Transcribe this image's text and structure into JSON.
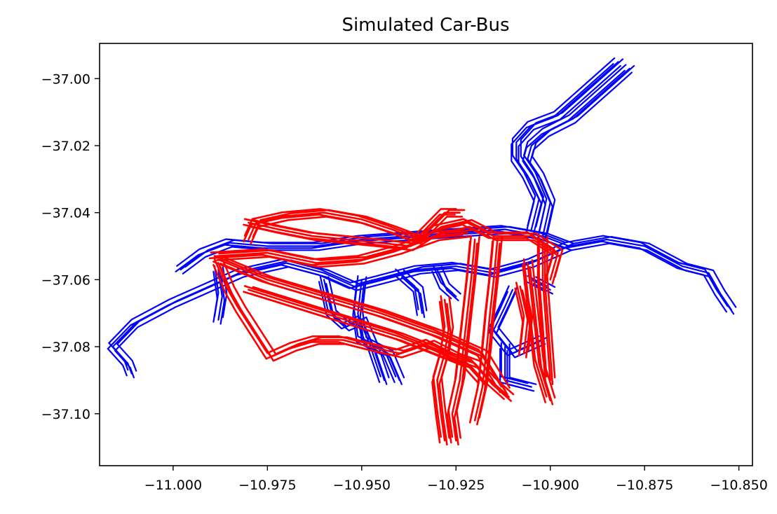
{
  "chart_data": {
    "type": "line",
    "title": "Simulated Car-Bus",
    "xlabel": "",
    "ylabel": "",
    "xlim": [
      -11.0195,
      -10.8464
    ],
    "ylim": [
      -37.1155,
      -36.9895
    ],
    "x_ticks": [
      {
        "value": -11.0,
        "label": "−11.000"
      },
      {
        "value": -10.975,
        "label": "−10.975"
      },
      {
        "value": -10.95,
        "label": "−10.950"
      },
      {
        "value": -10.925,
        "label": "−10.925"
      },
      {
        "value": -10.9,
        "label": "−10.900"
      },
      {
        "value": -10.875,
        "label": "−10.875"
      },
      {
        "value": -10.85,
        "label": "−10.850"
      }
    ],
    "y_ticks": [
      {
        "value": -37.0,
        "label": "−37.00"
      },
      {
        "value": -37.02,
        "label": "−37.02"
      },
      {
        "value": -37.04,
        "label": "−37.04"
      },
      {
        "value": -37.06,
        "label": "−37.06"
      },
      {
        "value": -37.08,
        "label": "−37.08"
      },
      {
        "value": -37.1,
        "label": "−37.10"
      }
    ],
    "grid": false,
    "legend": "none",
    "series": [
      {
        "color": "#0000ff",
        "paths": [
          [
            [
              -11.016,
              -37.08
            ],
            [
              -11.01,
              -37.073
            ],
            [
              -11.0,
              -37.067
            ],
            [
              -10.99,
              -37.062
            ],
            [
              -10.982,
              -37.058
            ],
            [
              -10.97,
              -37.055
            ],
            [
              -10.96,
              -37.058
            ],
            [
              -10.952,
              -37.062
            ],
            [
              -10.945,
              -37.06
            ],
            [
              -10.935,
              -37.057
            ],
            [
              -10.925,
              -37.056
            ],
            [
              -10.915,
              -37.058
            ],
            [
              -10.905,
              -37.055
            ],
            [
              -10.895,
              -37.05
            ],
            [
              -10.885,
              -37.048
            ],
            [
              -10.875,
              -37.05
            ],
            [
              -10.865,
              -37.056
            ],
            [
              -10.858,
              -37.058
            ],
            [
              -10.855,
              -37.064
            ],
            [
              -10.852,
              -37.069
            ]
          ],
          [
            [
              -11.016,
              -37.08
            ],
            [
              -11.012,
              -37.085
            ],
            [
              -11.011,
              -37.088
            ]
          ],
          [
            [
              -10.998,
              -37.057
            ],
            [
              -10.992,
              -37.052
            ],
            [
              -10.985,
              -37.049
            ],
            [
              -10.975,
              -37.05
            ],
            [
              -10.962,
              -37.05
            ],
            [
              -10.95,
              -37.048
            ],
            [
              -10.938,
              -37.047
            ],
            [
              -10.925,
              -37.046
            ],
            [
              -10.912,
              -37.045
            ],
            [
              -10.902,
              -37.047
            ],
            [
              -10.895,
              -37.05
            ]
          ],
          [
            [
              -10.905,
              -37.045
            ],
            [
              -10.903,
              -37.036
            ],
            [
              -10.906,
              -37.029
            ],
            [
              -10.909,
              -37.024
            ],
            [
              -10.909,
              -37.019
            ],
            [
              -10.905,
              -37.014
            ],
            [
              -10.898,
              -37.011
            ],
            [
              -10.892,
              -37.005
            ],
            [
              -10.887,
              -37.0
            ],
            [
              -10.882,
              -36.995
            ]
          ],
          [
            [
              -10.902,
              -37.047
            ],
            [
              -10.9,
              -37.037
            ],
            [
              -10.903,
              -37.029
            ],
            [
              -10.906,
              -37.024
            ],
            [
              -10.905,
              -37.02
            ],
            [
              -10.901,
              -37.016
            ],
            [
              -10.894,
              -37.012
            ],
            [
              -10.888,
              -37.006
            ],
            [
              -10.883,
              -37.001
            ],
            [
              -10.879,
              -36.997
            ]
          ],
          [
            [
              -10.96,
              -37.06
            ],
            [
              -10.958,
              -37.07
            ],
            [
              -10.954,
              -37.074
            ],
            [
              -10.95,
              -37.072
            ],
            [
              -10.947,
              -37.08
            ],
            [
              -10.944,
              -37.09
            ]
          ],
          [
            [
              -10.95,
              -37.06
            ],
            [
              -10.951,
              -37.07
            ],
            [
              -10.95,
              -37.078
            ],
            [
              -10.943,
              -37.082
            ],
            [
              -10.94,
              -37.09
            ]
          ],
          [
            [
              -10.94,
              -37.058
            ],
            [
              -10.935,
              -37.063
            ],
            [
              -10.934,
              -37.07
            ]
          ],
          [
            [
              -10.93,
              -37.057
            ],
            [
              -10.928,
              -37.062
            ],
            [
              -10.925,
              -37.065
            ]
          ],
          [
            [
              -10.91,
              -37.063
            ],
            [
              -10.912,
              -37.068
            ],
            [
              -10.915,
              -37.075
            ],
            [
              -10.91,
              -37.082
            ],
            [
              -10.902,
              -37.078
            ]
          ],
          [
            [
              -10.905,
              -37.06
            ],
            [
              -10.9,
              -37.063
            ]
          ],
          [
            [
              -10.912,
              -37.08
            ],
            [
              -10.912,
              -37.09
            ],
            [
              -10.905,
              -37.092
            ]
          ],
          [
            [
              -10.988,
              -37.057
            ],
            [
              -10.987,
              -37.065
            ],
            [
              -10.988,
              -37.072
            ]
          ]
        ]
      },
      {
        "color": "#ff0000",
        "paths": [
          [
            [
              -10.988,
              -37.055
            ],
            [
              -10.985,
              -37.063
            ],
            [
              -10.982,
              -37.069
            ],
            [
              -10.978,
              -37.076
            ],
            [
              -10.974,
              -37.083
            ],
            [
              -10.968,
              -37.08
            ],
            [
              -10.962,
              -37.078
            ],
            [
              -10.955,
              -37.078
            ],
            [
              -10.948,
              -37.08
            ],
            [
              -10.94,
              -37.082
            ],
            [
              -10.932,
              -37.079
            ],
            [
              -10.925,
              -37.083
            ],
            [
              -10.92,
              -37.085
            ],
            [
              -10.916,
              -37.09
            ],
            [
              -10.911,
              -37.095
            ]
          ],
          [
            [
              -10.988,
              -37.054
            ],
            [
              -10.975,
              -37.06
            ],
            [
              -10.96,
              -37.065
            ],
            [
              -10.945,
              -37.07
            ],
            [
              -10.93,
              -37.076
            ],
            [
              -10.918,
              -37.082
            ],
            [
              -10.912,
              -37.093
            ]
          ],
          [
            [
              -10.98,
              -37.063
            ],
            [
              -10.96,
              -37.07
            ],
            [
              -10.94,
              -37.077
            ],
            [
              -10.922,
              -37.085
            ],
            [
              -10.918,
              -37.09
            ]
          ],
          [
            [
              -10.98,
              -37.048
            ],
            [
              -10.978,
              -37.043
            ],
            [
              -10.97,
              -37.041
            ],
            [
              -10.96,
              -37.04
            ],
            [
              -10.95,
              -37.042
            ],
            [
              -10.942,
              -37.045
            ],
            [
              -10.935,
              -37.048
            ],
            [
              -10.928,
              -37.04
            ],
            [
              -10.924,
              -37.04
            ]
          ],
          [
            [
              -10.98,
              -37.043
            ],
            [
              -10.972,
              -37.045
            ],
            [
              -10.963,
              -37.047
            ],
            [
              -10.954,
              -37.048
            ],
            [
              -10.945,
              -37.049
            ],
            [
              -10.937,
              -37.05
            ],
            [
              -10.93,
              -37.045
            ],
            [
              -10.922,
              -37.043
            ],
            [
              -10.915,
              -37.047
            ],
            [
              -10.905,
              -37.047
            ],
            [
              -10.898,
              -37.052
            ],
            [
              -10.9,
              -37.06
            ]
          ],
          [
            [
              -10.989,
              -37.053
            ],
            [
              -10.975,
              -37.052
            ],
            [
              -10.962,
              -37.055
            ],
            [
              -10.95,
              -37.054
            ],
            [
              -10.94,
              -37.051
            ],
            [
              -10.93,
              -37.047
            ],
            [
              -10.922,
              -37.046
            ]
          ],
          [
            [
              -10.92,
              -37.048
            ],
            [
              -10.921,
              -37.06
            ],
            [
              -10.922,
              -37.07
            ],
            [
              -10.923,
              -37.08
            ],
            [
              -10.924,
              -37.09
            ],
            [
              -10.926,
              -37.1
            ],
            [
              -10.925,
              -37.108
            ]
          ],
          [
            [
              -10.914,
              -37.048
            ],
            [
              -10.915,
              -37.06
            ],
            [
              -10.916,
              -37.07
            ],
            [
              -10.917,
              -37.082
            ],
            [
              -10.918,
              -37.092
            ],
            [
              -10.92,
              -37.102
            ]
          ],
          [
            [
              -10.928,
              -37.066
            ],
            [
              -10.927,
              -37.075
            ],
            [
              -10.928,
              -37.082
            ],
            [
              -10.93,
              -37.09
            ],
            [
              -10.929,
              -37.1
            ],
            [
              -10.928,
              -37.108
            ]
          ],
          [
            [
              -10.906,
              -37.055
            ],
            [
              -10.905,
              -37.065
            ],
            [
              -10.904,
              -37.075
            ],
            [
              -10.903,
              -37.085
            ],
            [
              -10.9,
              -37.096
            ]
          ],
          [
            [
              -10.902,
              -37.048
            ],
            [
              -10.902,
              -37.06
            ],
            [
              -10.901,
              -37.075
            ],
            [
              -10.9,
              -37.09
            ]
          ],
          [
            [
              -10.908,
              -37.062
            ],
            [
              -10.906,
              -37.072
            ],
            [
              -10.907,
              -37.082
            ]
          ]
        ]
      }
    ]
  }
}
